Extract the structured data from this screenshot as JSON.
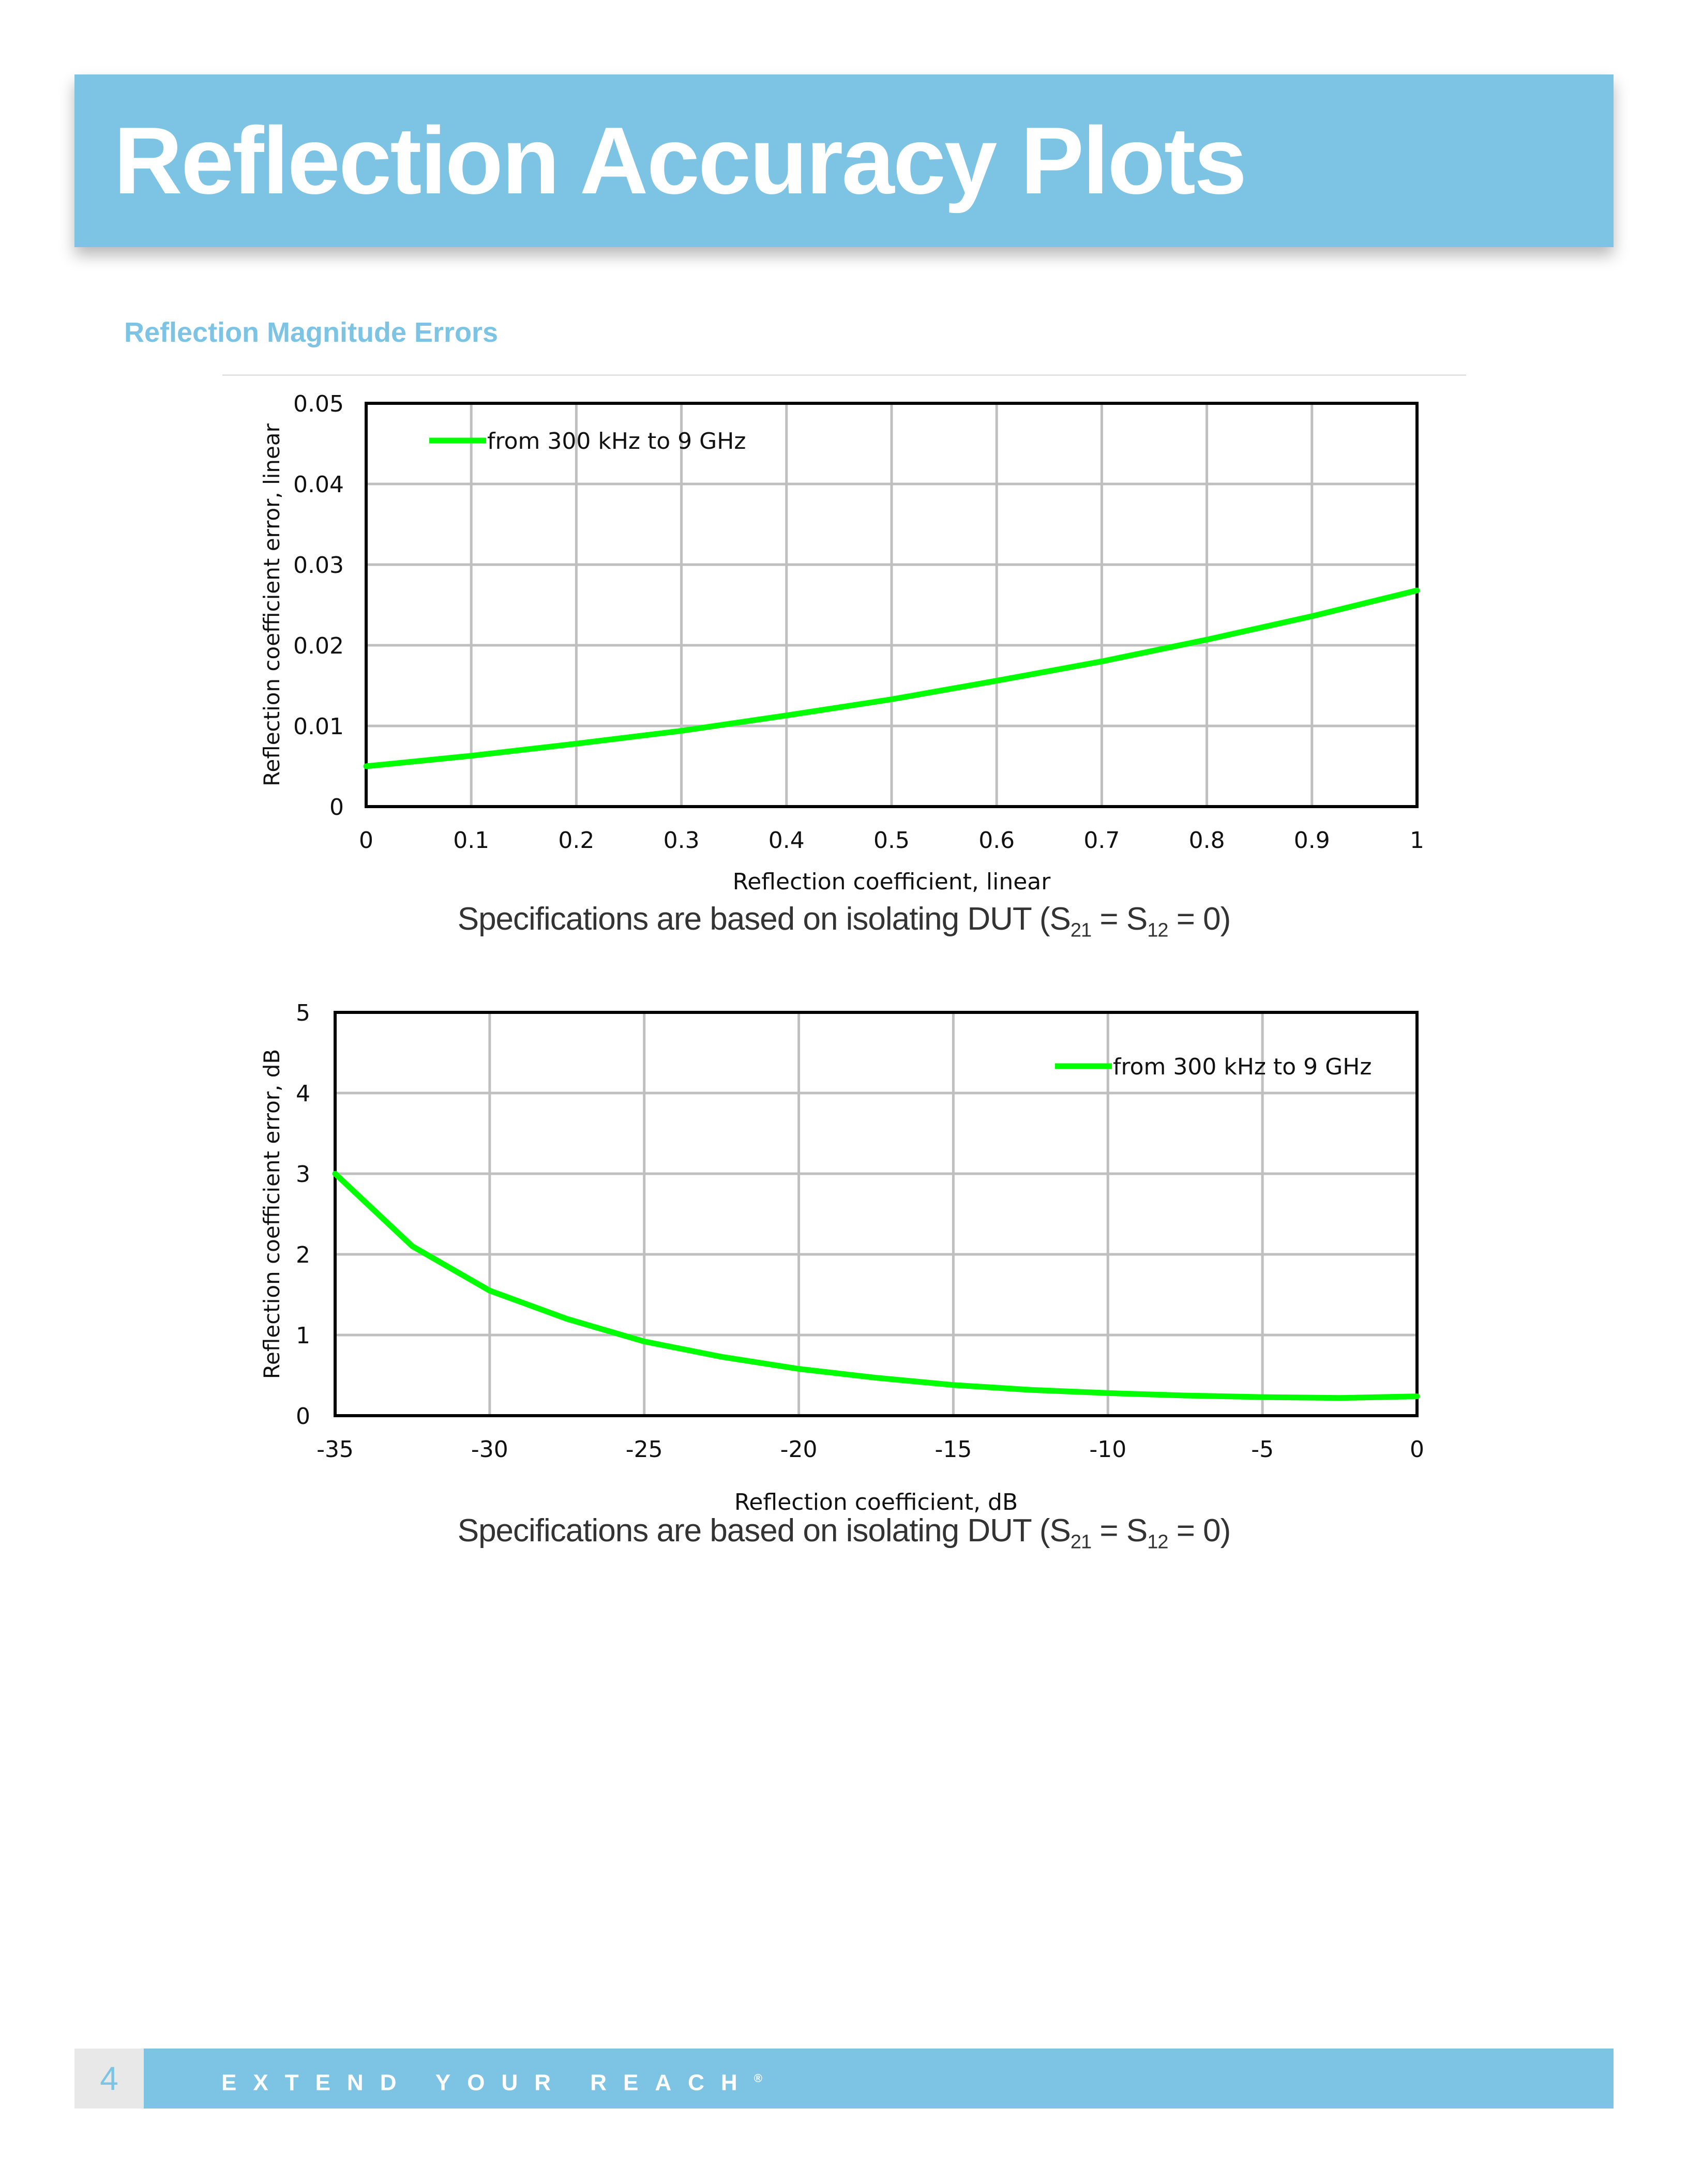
{
  "header": {
    "title": "Reflection Accuracy Plots"
  },
  "section": {
    "title": "Reflection Magnitude Errors"
  },
  "captions": {
    "caption_1": {
      "prefix": "Specifications are based on isolating DUT (S",
      "sub1": "21",
      "middle": " = S",
      "sub2": "12",
      "suffix": " = 0)"
    },
    "caption_2": {
      "prefix": "Specifications are based on isolating DUT (S",
      "sub1": "21",
      "middle": " = S",
      "sub2": "12",
      "suffix": " = 0)"
    }
  },
  "footer": {
    "page_number": "4",
    "slogan": "EXTEND YOUR REACH",
    "reg_mark": "®"
  },
  "colors": {
    "accent": "#7dc4e4",
    "series": "#00ff00"
  },
  "chart_data": [
    {
      "type": "line",
      "title": "",
      "xlabel": "Reflection coefficient, linear",
      "ylabel": "Reflection coefficient error, linear",
      "xlim": [
        0,
        1
      ],
      "ylim": [
        0,
        0.05
      ],
      "x_ticks": [
        "0",
        "0.1",
        "0.2",
        "0.3",
        "0.4",
        "0.5",
        "0.6",
        "0.7",
        "0.8",
        "0.9",
        "1"
      ],
      "y_ticks": [
        "0",
        "0.01",
        "0.02",
        "0.03",
        "0.04",
        "0.05"
      ],
      "grid": true,
      "legend_position": "top-left",
      "series": [
        {
          "name": "from 300 kHz to 9 GHz",
          "x": [
            0,
            0.1,
            0.2,
            0.3,
            0.4,
            0.5,
            0.6,
            0.7,
            0.8,
            0.9,
            1.0
          ],
          "y": [
            0.005,
            0.0063,
            0.0078,
            0.0094,
            0.0113,
            0.0133,
            0.0156,
            0.018,
            0.0207,
            0.0236,
            0.0268
          ]
        }
      ]
    },
    {
      "type": "line",
      "title": "",
      "xlabel": "Reflection coefficient, dB",
      "ylabel": "Reflection coefficient error, dB",
      "xlim": [
        -35,
        0
      ],
      "ylim": [
        0,
        5
      ],
      "x_ticks": [
        "-35",
        "-30",
        "-25",
        "-20",
        "-15",
        "-10",
        "-5",
        "0"
      ],
      "y_ticks": [
        "0",
        "1",
        "2",
        "3",
        "4",
        "5"
      ],
      "grid": true,
      "legend_position": "top-right",
      "series": [
        {
          "name": "from 300 kHz to 9 GHz",
          "x": [
            -35,
            -32.5,
            -30,
            -27.5,
            -25,
            -22.5,
            -20,
            -17.5,
            -15,
            -12.5,
            -10,
            -7.5,
            -5,
            -2.5,
            0
          ],
          "y": [
            3.0,
            2.1,
            1.55,
            1.2,
            0.92,
            0.73,
            0.58,
            0.47,
            0.38,
            0.32,
            0.28,
            0.25,
            0.23,
            0.22,
            0.24
          ]
        }
      ]
    }
  ]
}
